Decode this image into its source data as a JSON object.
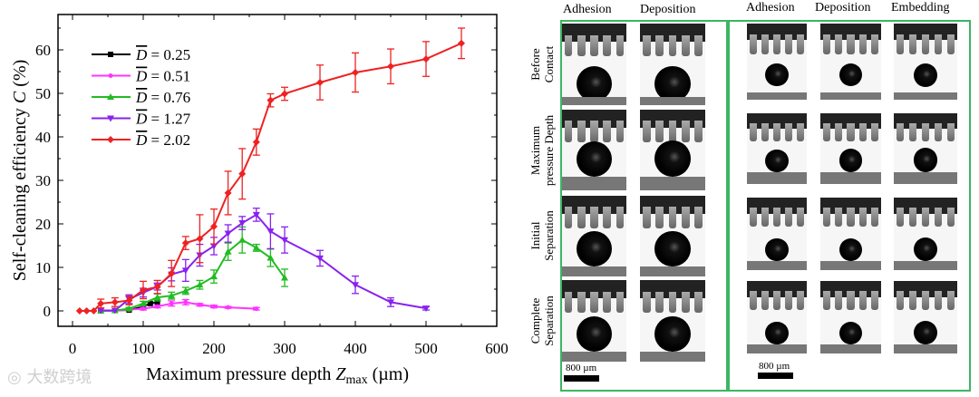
{
  "chart_data": {
    "type": "line",
    "xlabel": "Maximum pressure depth Z_max (µm)",
    "xlabel_parts": {
      "main": "Maximum pressure depth ",
      "var": "Z",
      "sub": "max",
      "unit": " (µm)"
    },
    "ylabel": "Self-cleaning efficiency C (%)",
    "ylabel_parts": {
      "main": "Self-cleaning efficiency ",
      "var": "C",
      "unit": " (%)"
    },
    "xlim": [
      -20,
      600
    ],
    "ylim": [
      -4,
      66
    ],
    "xticks": [
      "0",
      "100",
      "200",
      "300",
      "400",
      "500",
      "600"
    ],
    "yticks": [
      "0",
      "10",
      "20",
      "30",
      "40",
      "50",
      "60"
    ],
    "legend_position": "top-left",
    "series": [
      {
        "name": "D̄ = 0.25",
        "label": "= 0.25",
        "color": "#000000",
        "marker": "square",
        "x": [
          40,
          60,
          80,
          100,
          110,
          120
        ],
        "y": [
          0,
          0.1,
          0.2,
          1.0,
          1.7,
          2.0
        ],
        "err": [
          0,
          0,
          0,
          0,
          0,
          0
        ]
      },
      {
        "name": "D̄ = 0.51",
        "label": "= 0.51",
        "color": "#ff33ff",
        "marker": "star",
        "x": [
          40,
          60,
          80,
          100,
          120,
          140,
          160,
          180,
          200,
          220,
          260
        ],
        "y": [
          0,
          0,
          0.3,
          0.5,
          1.0,
          1.7,
          2.0,
          1.4,
          1.0,
          0.8,
          0.5
        ],
        "err": [
          0,
          0,
          0,
          0.3,
          0.3,
          0.6,
          0.6,
          0.3,
          0.3,
          0.2,
          0.3
        ]
      },
      {
        "name": "D̄ = 0.76",
        "label": "= 0.76",
        "color": "#22bb22",
        "marker": "triangle-up",
        "x": [
          40,
          60,
          80,
          100,
          120,
          140,
          160,
          180,
          200,
          220,
          240,
          260,
          280,
          300
        ],
        "y": [
          0,
          0.1,
          0.5,
          1.7,
          3.1,
          3.5,
          4.6,
          6.0,
          7.9,
          13.6,
          16.3,
          14.5,
          12.2,
          7.6
        ],
        "err": [
          0,
          0,
          0.3,
          0.5,
          0.8,
          0.8,
          0.8,
          1.0,
          1.5,
          2.0,
          3.0,
          0.8,
          2.0,
          2.0
        ]
      },
      {
        "name": "D̄ = 1.27",
        "label": "= 1.27",
        "color": "#8822ee",
        "marker": "triangle-down",
        "x": [
          40,
          60,
          80,
          100,
          120,
          140,
          160,
          180,
          200,
          220,
          240,
          260,
          280,
          300,
          350,
          400,
          450,
          500
        ],
        "y": [
          0.1,
          0.1,
          2.7,
          4.2,
          5.6,
          8.4,
          9.3,
          12.8,
          14.9,
          17.8,
          20.2,
          22.1,
          18.3,
          16.3,
          12.1,
          6.0,
          2.0,
          0.6
        ],
        "err": [
          0,
          0,
          1.0,
          1.0,
          0.8,
          1.5,
          2.5,
          2.5,
          2.0,
          2.0,
          1.5,
          1.5,
          4.0,
          3.0,
          1.8,
          2.0,
          1.0,
          0.4
        ]
      },
      {
        "name": "D̄ = 2.02",
        "label": "= 2.02",
        "color": "#ee2222",
        "marker": "diamond",
        "x": [
          10,
          20,
          30,
          40,
          60,
          80,
          100,
          120,
          140,
          160,
          180,
          200,
          220,
          240,
          260,
          280,
          300,
          350,
          400,
          450,
          500,
          550
        ],
        "y": [
          0,
          0,
          0,
          1.7,
          2.0,
          2.4,
          4.8,
          5.5,
          8.6,
          15.6,
          16.6,
          19.4,
          27.1,
          31.5,
          38.8,
          48.4,
          49.9,
          52.5,
          54.8,
          56.2,
          57.9,
          61.5
        ],
        "err": [
          0,
          0,
          0,
          1.0,
          1.0,
          1.0,
          2.0,
          1.5,
          3.0,
          1.5,
          5.5,
          4.0,
          5.0,
          5.8,
          3.0,
          1.5,
          1.5,
          4.0,
          4.5,
          4.0,
          4.0,
          3.5
        ]
      }
    ]
  },
  "photos": {
    "left_headers": [
      "Adhesion",
      "Deposition"
    ],
    "right_headers": [
      "Adhesion",
      "Deposition",
      "Embedding"
    ],
    "row_labels": [
      [
        "Before",
        "Contact"
      ],
      [
        "Maximum",
        "pressure Depth"
      ],
      [
        "Initial",
        "Separation"
      ],
      [
        "Complete",
        "Separation"
      ]
    ],
    "scale_left": "800 µm",
    "scale_right": "800 µm"
  },
  "watermark": "大数跨境",
  "colors": {
    "frame": "#3cb563"
  }
}
